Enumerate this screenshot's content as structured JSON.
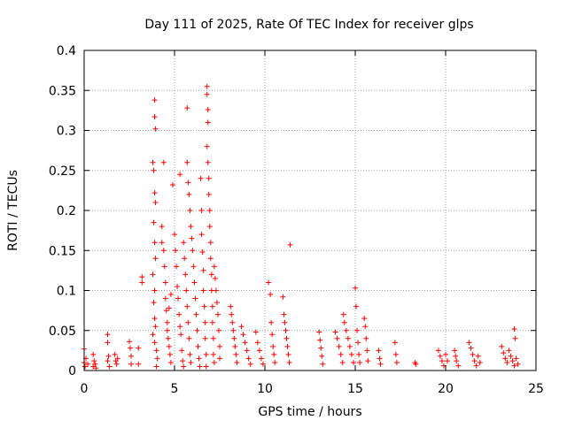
{
  "chart_data": {
    "type": "scatter",
    "title": "Day 111 of 2025, Rate Of TEC Index for receiver glps",
    "xlabel": "GPS time / hours",
    "ylabel": "ROTI / TECUs",
    "xlim": [
      0,
      25
    ],
    "ylim": [
      0,
      0.4
    ],
    "xticks": [
      0,
      5,
      10,
      15,
      20,
      25
    ],
    "xtick_labels": [
      "0",
      "5",
      "10",
      "15",
      "20",
      "25"
    ],
    "yticks": [
      0,
      0.05,
      0.1,
      0.15,
      0.2,
      0.25,
      0.3,
      0.35,
      0.4
    ],
    "ytick_labels": [
      "0",
      "0.05",
      "0.1",
      "0.15",
      "0.2",
      "0.25",
      "0.3",
      "0.35",
      "0.4"
    ],
    "grid": true,
    "marker": "+",
    "color": "#ff0000",
    "series": [
      {
        "points": [
          [
            0.0,
            0.027
          ],
          [
            0.0,
            0.01
          ],
          [
            0.05,
            0.005
          ],
          [
            0.1,
            0.015
          ],
          [
            0.2,
            0.008
          ],
          [
            0.5,
            0.02
          ],
          [
            0.5,
            0.005
          ],
          [
            0.55,
            0.012
          ],
          [
            0.6,
            0.008
          ],
          [
            0.65,
            0.003
          ],
          [
            1.3,
            0.045
          ],
          [
            1.3,
            0.035
          ],
          [
            1.3,
            0.012
          ],
          [
            1.35,
            0.018
          ],
          [
            1.4,
            0.005
          ],
          [
            1.7,
            0.02
          ],
          [
            1.75,
            0.012
          ],
          [
            1.8,
            0.008
          ],
          [
            1.85,
            0.015
          ],
          [
            2.5,
            0.036
          ],
          [
            2.55,
            0.028
          ],
          [
            2.6,
            0.018
          ],
          [
            2.6,
            0.008
          ],
          [
            3.0,
            0.028
          ],
          [
            3.0,
            0.008
          ],
          [
            3.2,
            0.117
          ],
          [
            3.2,
            0.11
          ],
          [
            3.8,
            0.26
          ],
          [
            3.85,
            0.25
          ],
          [
            3.9,
            0.338
          ],
          [
            3.9,
            0.317
          ],
          [
            3.95,
            0.302
          ],
          [
            3.9,
            0.222
          ],
          [
            3.95,
            0.21
          ],
          [
            3.85,
            0.185
          ],
          [
            3.9,
            0.16
          ],
          [
            3.95,
            0.14
          ],
          [
            3.8,
            0.12
          ],
          [
            3.9,
            0.1
          ],
          [
            3.85,
            0.085
          ],
          [
            3.9,
            0.065
          ],
          [
            3.95,
            0.055
          ],
          [
            3.8,
            0.045
          ],
          [
            3.9,
            0.035
          ],
          [
            4.0,
            0.025
          ],
          [
            4.05,
            0.015
          ],
          [
            4.0,
            0.005
          ],
          [
            4.3,
            0.18
          ],
          [
            4.3,
            0.16
          ],
          [
            4.4,
            0.26
          ],
          [
            4.4,
            0.15
          ],
          [
            4.45,
            0.13
          ],
          [
            4.5,
            0.11
          ],
          [
            4.5,
            0.09
          ],
          [
            4.55,
            0.075
          ],
          [
            4.6,
            0.06
          ],
          [
            4.6,
            0.05
          ],
          [
            4.65,
            0.04
          ],
          [
            4.7,
            0.03
          ],
          [
            4.75,
            0.02
          ],
          [
            4.8,
            0.01
          ],
          [
            4.7,
            0.078
          ],
          [
            4.8,
            0.095
          ],
          [
            4.9,
            0.232
          ],
          [
            5.0,
            0.17
          ],
          [
            5.05,
            0.15
          ],
          [
            5.1,
            0.13
          ],
          [
            5.15,
            0.105
          ],
          [
            5.2,
            0.09
          ],
          [
            5.25,
            0.07
          ],
          [
            5.3,
            0.055
          ],
          [
            5.35,
            0.045
          ],
          [
            5.4,
            0.025
          ],
          [
            5.45,
            0.012
          ],
          [
            5.5,
            0.005
          ],
          [
            5.3,
            0.245
          ],
          [
            5.5,
            0.16
          ],
          [
            5.55,
            0.14
          ],
          [
            5.6,
            0.12
          ],
          [
            5.65,
            0.1
          ],
          [
            5.7,
            0.08
          ],
          [
            5.75,
            0.06
          ],
          [
            5.8,
            0.04
          ],
          [
            5.85,
            0.02
          ],
          [
            5.9,
            0.01
          ],
          [
            5.7,
            0.328
          ],
          [
            5.7,
            0.26
          ],
          [
            5.75,
            0.235
          ],
          [
            5.8,
            0.22
          ],
          [
            5.85,
            0.2
          ],
          [
            5.9,
            0.18
          ],
          [
            5.95,
            0.165
          ],
          [
            6.0,
            0.15
          ],
          [
            6.05,
            0.13
          ],
          [
            6.1,
            0.11
          ],
          [
            6.15,
            0.09
          ],
          [
            6.2,
            0.07
          ],
          [
            6.25,
            0.05
          ],
          [
            6.3,
            0.03
          ],
          [
            6.35,
            0.015
          ],
          [
            6.4,
            0.005
          ],
          [
            6.45,
            0.24
          ],
          [
            6.5,
            0.2
          ],
          [
            6.5,
            0.17
          ],
          [
            6.55,
            0.148
          ],
          [
            6.6,
            0.125
          ],
          [
            6.6,
            0.1
          ],
          [
            6.65,
            0.08
          ],
          [
            6.7,
            0.06
          ],
          [
            6.7,
            0.04
          ],
          [
            6.75,
            0.02
          ],
          [
            6.75,
            0.005
          ],
          [
            6.8,
            0.355
          ],
          [
            6.8,
            0.345
          ],
          [
            6.85,
            0.326
          ],
          [
            6.85,
            0.31
          ],
          [
            6.8,
            0.28
          ],
          [
            6.85,
            0.26
          ],
          [
            6.9,
            0.24
          ],
          [
            6.9,
            0.22
          ],
          [
            6.95,
            0.2
          ],
          [
            6.95,
            0.18
          ],
          [
            7.0,
            0.16
          ],
          [
            7.0,
            0.14
          ],
          [
            7.05,
            0.12
          ],
          [
            7.05,
            0.1
          ],
          [
            7.1,
            0.08
          ],
          [
            7.1,
            0.06
          ],
          [
            7.15,
            0.04
          ],
          [
            7.15,
            0.02
          ],
          [
            7.2,
            0.01
          ],
          [
            7.2,
            0.13
          ],
          [
            7.25,
            0.115
          ],
          [
            7.3,
            0.1
          ],
          [
            7.35,
            0.085
          ],
          [
            7.4,
            0.07
          ],
          [
            7.45,
            0.05
          ],
          [
            7.5,
            0.03
          ],
          [
            7.5,
            0.015
          ],
          [
            8.1,
            0.08
          ],
          [
            8.15,
            0.07
          ],
          [
            8.2,
            0.06
          ],
          [
            8.25,
            0.05
          ],
          [
            8.3,
            0.04
          ],
          [
            8.35,
            0.03
          ],
          [
            8.4,
            0.02
          ],
          [
            8.45,
            0.01
          ],
          [
            8.7,
            0.055
          ],
          [
            8.8,
            0.045
          ],
          [
            8.9,
            0.035
          ],
          [
            9.0,
            0.025
          ],
          [
            9.1,
            0.015
          ],
          [
            9.2,
            0.008
          ],
          [
            9.5,
            0.048
          ],
          [
            9.6,
            0.035
          ],
          [
            9.7,
            0.025
          ],
          [
            9.8,
            0.015
          ],
          [
            9.9,
            0.008
          ],
          [
            10.2,
            0.11
          ],
          [
            10.3,
            0.095
          ],
          [
            10.35,
            0.06
          ],
          [
            10.4,
            0.045
          ],
          [
            10.45,
            0.03
          ],
          [
            10.5,
            0.02
          ],
          [
            10.55,
            0.01
          ],
          [
            11.0,
            0.092
          ],
          [
            11.05,
            0.07
          ],
          [
            11.1,
            0.06
          ],
          [
            11.15,
            0.05
          ],
          [
            11.2,
            0.04
          ],
          [
            11.25,
            0.03
          ],
          [
            11.3,
            0.02
          ],
          [
            11.35,
            0.01
          ],
          [
            11.4,
            0.157
          ],
          [
            13.0,
            0.048
          ],
          [
            13.05,
            0.038
          ],
          [
            13.1,
            0.028
          ],
          [
            13.15,
            0.018
          ],
          [
            13.2,
            0.008
          ],
          [
            13.9,
            0.048
          ],
          [
            14.0,
            0.04
          ],
          [
            14.1,
            0.03
          ],
          [
            14.2,
            0.02
          ],
          [
            14.3,
            0.01
          ],
          [
            14.35,
            0.07
          ],
          [
            14.4,
            0.06
          ],
          [
            14.5,
            0.05
          ],
          [
            14.6,
            0.04
          ],
          [
            14.7,
            0.03
          ],
          [
            14.8,
            0.02
          ],
          [
            14.9,
            0.01
          ],
          [
            15.0,
            0.103
          ],
          [
            15.05,
            0.08
          ],
          [
            15.1,
            0.05
          ],
          [
            15.15,
            0.035
          ],
          [
            15.2,
            0.02
          ],
          [
            15.25,
            0.01
          ],
          [
            15.5,
            0.065
          ],
          [
            15.55,
            0.055
          ],
          [
            15.6,
            0.04
          ],
          [
            15.65,
            0.025
          ],
          [
            15.7,
            0.012
          ],
          [
            16.3,
            0.025
          ],
          [
            16.35,
            0.015
          ],
          [
            16.4,
            0.008
          ],
          [
            17.2,
            0.035
          ],
          [
            17.25,
            0.02
          ],
          [
            17.3,
            0.01
          ],
          [
            18.3,
            0.01
          ],
          [
            18.35,
            0.008
          ],
          [
            19.6,
            0.025
          ],
          [
            19.7,
            0.018
          ],
          [
            19.8,
            0.012
          ],
          [
            19.9,
            0.006
          ],
          [
            20.0,
            0.02
          ],
          [
            20.1,
            0.012
          ],
          [
            20.5,
            0.025
          ],
          [
            20.55,
            0.018
          ],
          [
            20.6,
            0.012
          ],
          [
            20.7,
            0.006
          ],
          [
            21.3,
            0.035
          ],
          [
            21.4,
            0.028
          ],
          [
            21.5,
            0.02
          ],
          [
            21.6,
            0.012
          ],
          [
            21.7,
            0.006
          ],
          [
            21.8,
            0.018
          ],
          [
            21.9,
            0.01
          ],
          [
            23.1,
            0.03
          ],
          [
            23.2,
            0.022
          ],
          [
            23.3,
            0.015
          ],
          [
            23.4,
            0.01
          ],
          [
            23.5,
            0.025
          ],
          [
            23.6,
            0.018
          ],
          [
            23.7,
            0.012
          ],
          [
            23.8,
            0.006
          ],
          [
            23.8,
            0.052
          ],
          [
            23.85,
            0.04
          ],
          [
            23.9,
            0.015
          ],
          [
            24.0,
            0.008
          ]
        ]
      }
    ]
  }
}
